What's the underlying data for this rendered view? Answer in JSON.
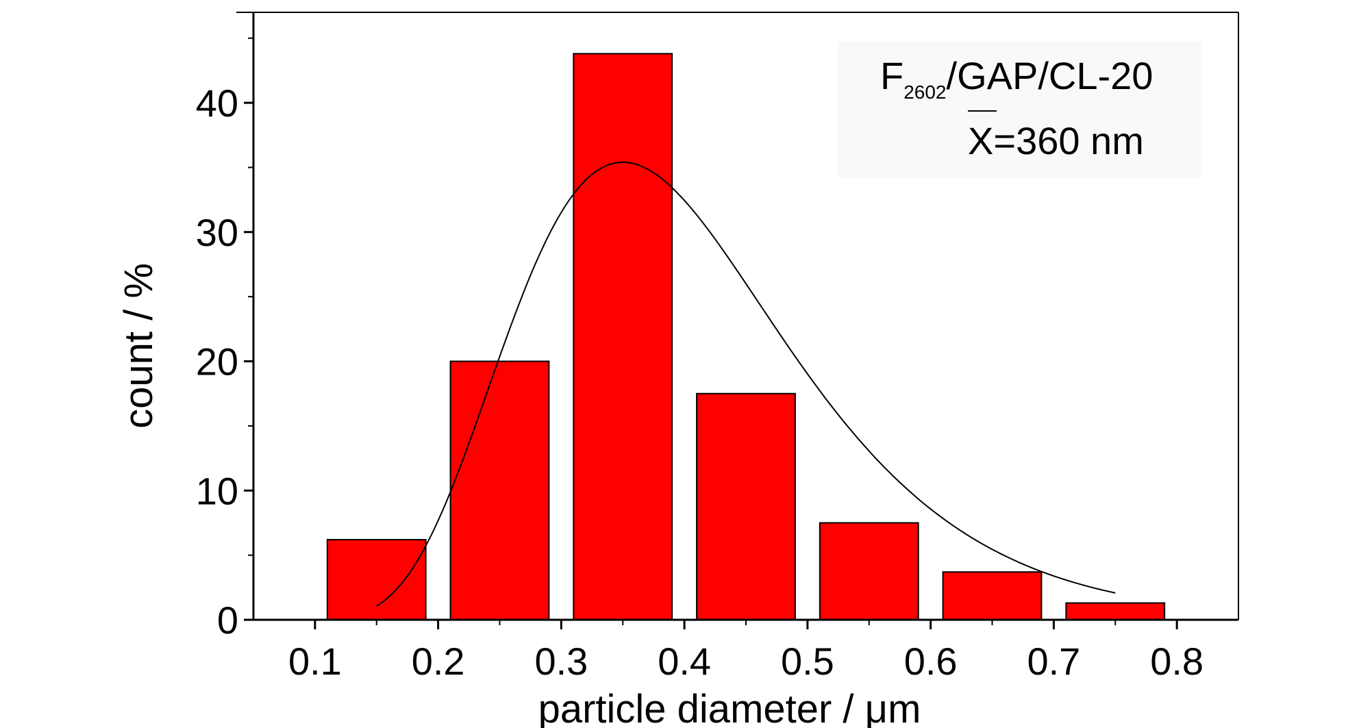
{
  "chart_data": {
    "type": "bar",
    "xlabel": "particle diameter / μm",
    "ylabel": "count / %",
    "xlim": [
      0.05,
      0.85
    ],
    "ylim": [
      0,
      47
    ],
    "x_ticks": [
      0.1,
      0.2,
      0.3,
      0.4,
      0.5,
      0.6,
      0.7,
      0.8
    ],
    "x_tick_labels": [
      "0.1",
      "0.2",
      "0.3",
      "0.4",
      "0.5",
      "0.6",
      "0.7",
      "0.8"
    ],
    "y_ticks": [
      0,
      10,
      20,
      30,
      40
    ],
    "y_tick_labels": [
      "0",
      "10",
      "20",
      "30",
      "40"
    ],
    "y_minor_step": 5,
    "bar_width": 0.08,
    "bars": [
      {
        "x": 0.15,
        "value": 6.2
      },
      {
        "x": 0.25,
        "value": 20.0
      },
      {
        "x": 0.35,
        "value": 43.8
      },
      {
        "x": 0.45,
        "value": 17.5
      },
      {
        "x": 0.55,
        "value": 7.5
      },
      {
        "x": 0.65,
        "value": 3.7
      },
      {
        "x": 0.75,
        "value": 1.3
      }
    ],
    "bar_color": "#ff0000",
    "fit_curve": {
      "type": "lognormal",
      "peak_x": 0.35,
      "peak_y": 35.4,
      "x_range": [
        0.15,
        0.75
      ]
    },
    "legend": {
      "placement": "top-right",
      "sample_main": "F",
      "sample_subscript": "2602",
      "sample_rest": "/GAP/CL-20",
      "mean_symbol": "X",
      "mean_text": "=360 nm"
    },
    "grid": false
  }
}
